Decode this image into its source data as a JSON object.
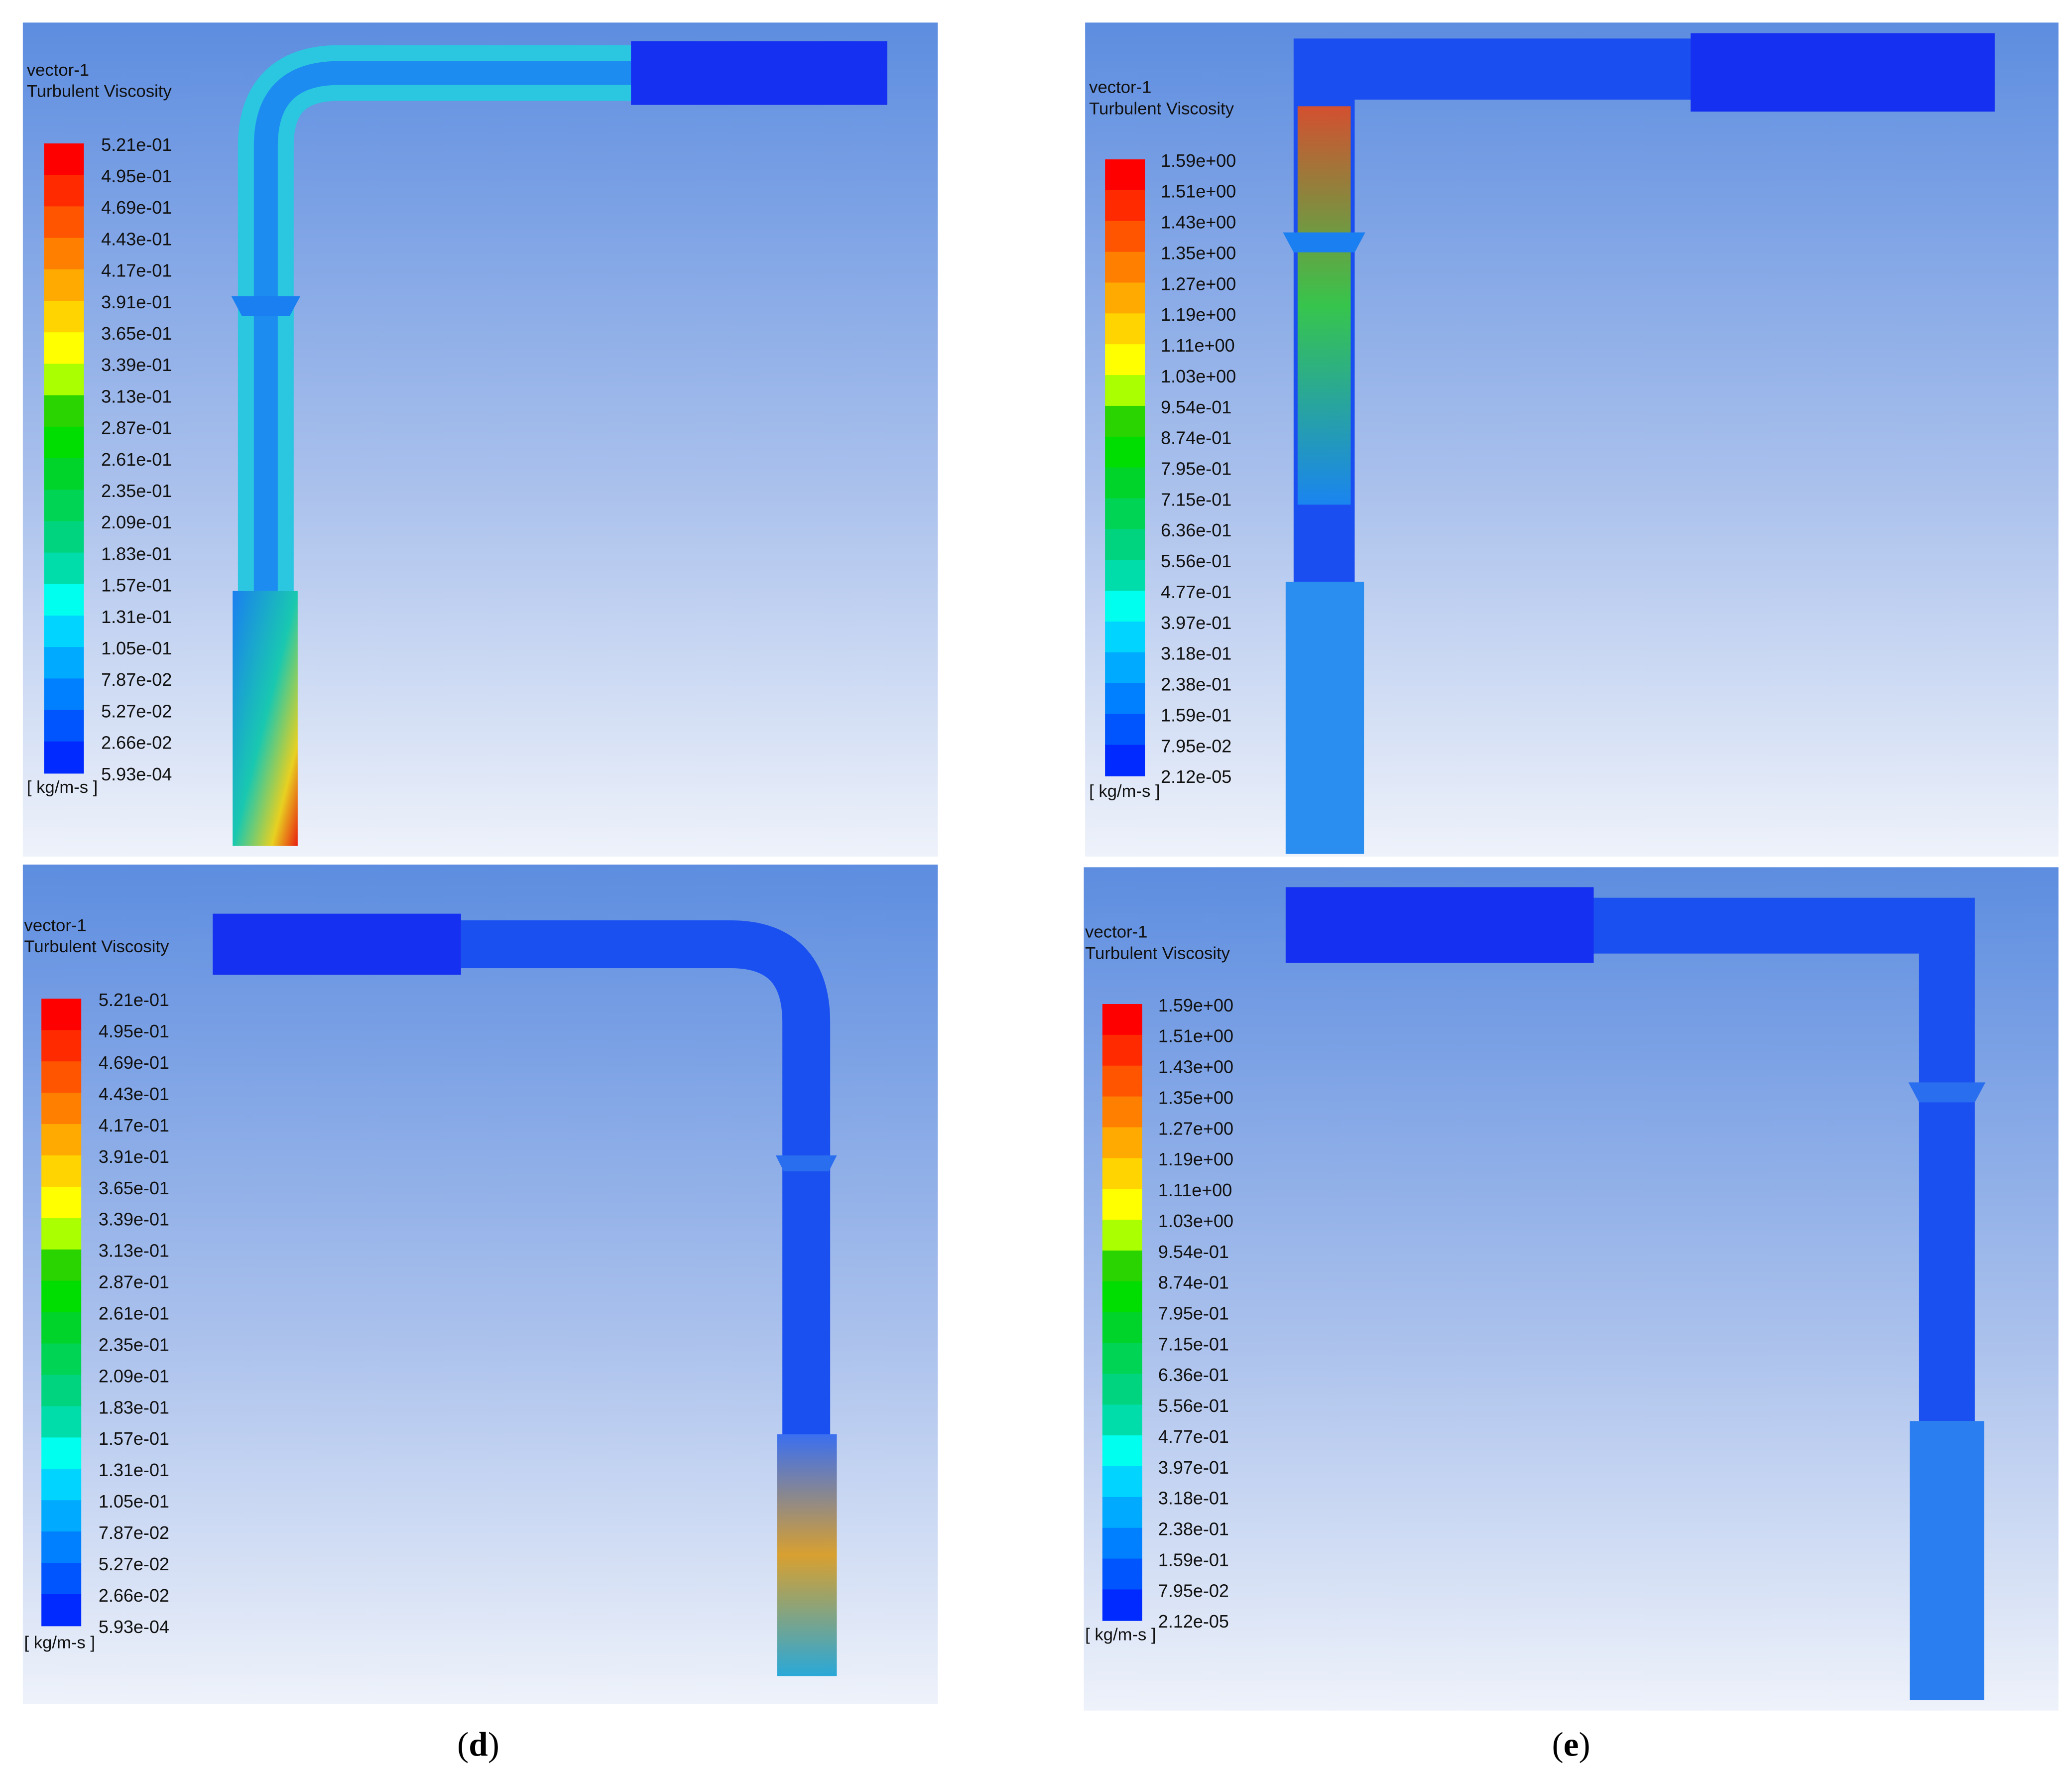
{
  "panels": [
    {
      "header": "vector-1",
      "variable": "Turbulent Viscosity",
      "unit": "[ kg/m-s ]",
      "levels": [
        "5.21e-01",
        "4.95e-01",
        "4.69e-01",
        "4.43e-01",
        "4.17e-01",
        "3.91e-01",
        "3.65e-01",
        "3.39e-01",
        "3.13e-01",
        "2.87e-01",
        "2.61e-01",
        "2.35e-01",
        "2.09e-01",
        "1.83e-01",
        "1.57e-01",
        "1.31e-01",
        "1.05e-01",
        "7.87e-02",
        "5.27e-02",
        "2.66e-02",
        "5.93e-04"
      ]
    },
    {
      "header": "vector-1",
      "variable": "Turbulent Viscosity",
      "unit": "[ kg/m-s ]",
      "levels": [
        "1.59e+00",
        "1.51e+00",
        "1.43e+00",
        "1.35e+00",
        "1.27e+00",
        "1.19e+00",
        "1.11e+00",
        "1.03e+00",
        "9.54e-01",
        "8.74e-01",
        "7.95e-01",
        "7.15e-01",
        "6.36e-01",
        "5.56e-01",
        "4.77e-01",
        "3.97e-01",
        "3.18e-01",
        "2.38e-01",
        "1.59e-01",
        "7.95e-02",
        "2.12e-05"
      ]
    },
    {
      "header": "vector-1",
      "variable": "Turbulent Viscosity",
      "unit": "[ kg/m-s ]",
      "levels": [
        "5.21e-01",
        "4.95e-01",
        "4.69e-01",
        "4.43e-01",
        "4.17e-01",
        "3.91e-01",
        "3.65e-01",
        "3.39e-01",
        "3.13e-01",
        "2.87e-01",
        "2.61e-01",
        "2.35e-01",
        "2.09e-01",
        "1.83e-01",
        "1.57e-01",
        "1.31e-01",
        "1.05e-01",
        "7.87e-02",
        "5.27e-02",
        "2.66e-02",
        "5.93e-04"
      ]
    },
    {
      "header": "vector-1",
      "variable": "Turbulent Viscosity",
      "unit": "[ kg/m-s ]",
      "levels": [
        "1.59e+00",
        "1.51e+00",
        "1.43e+00",
        "1.35e+00",
        "1.27e+00",
        "1.19e+00",
        "1.11e+00",
        "1.03e+00",
        "9.54e-01",
        "8.74e-01",
        "7.95e-01",
        "7.15e-01",
        "6.36e-01",
        "5.56e-01",
        "4.77e-01",
        "3.97e-01",
        "3.18e-01",
        "2.38e-01",
        "1.59e-01",
        "7.95e-02",
        "2.12e-05"
      ]
    }
  ],
  "captions": [
    {
      "open": "(",
      "letter": "d",
      "close": ")"
    },
    {
      "open": "(",
      "letter": "e",
      "close": ")"
    }
  ]
}
